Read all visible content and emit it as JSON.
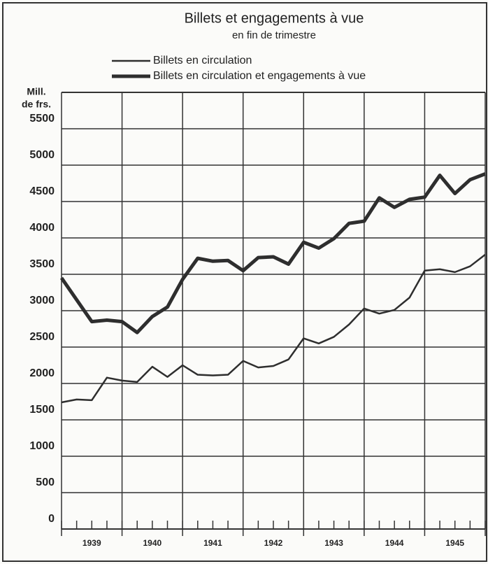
{
  "chart_data": {
    "type": "line",
    "title": "Billets et engagements à vue",
    "subtitle": "en fin de trimestre",
    "y_label": [
      "Mill.",
      "de frs."
    ],
    "x": [
      1939,
      1939.25,
      1939.5,
      1939.75,
      1940,
      1940.25,
      1940.5,
      1940.75,
      1941,
      1941.25,
      1941.5,
      1941.75,
      1942,
      1942.25,
      1942.5,
      1942.75,
      1943,
      1943.25,
      1943.5,
      1943.75,
      1944,
      1944.25,
      1944.5,
      1944.75,
      1945,
      1945.25,
      1945.5,
      1945.75,
      1946
    ],
    "series": [
      {
        "name": "Billets en circulation",
        "color": "#2e2e2e",
        "width": 2.5,
        "values": [
          1740,
          1780,
          1770,
          2080,
          2040,
          2020,
          2230,
          2090,
          2250,
          2120,
          2110,
          2120,
          2310,
          2220,
          2240,
          2330,
          2620,
          2550,
          2640,
          2810,
          3030,
          2960,
          3010,
          3180,
          3550,
          3570,
          3530,
          3610,
          3770
        ]
      },
      {
        "name": "Billets en circulation et engagements à vue",
        "color": "#2e2e2e",
        "width": 5,
        "values": [
          3450,
          3150,
          2850,
          2870,
          2850,
          2700,
          2920,
          3050,
          3430,
          3720,
          3680,
          3690,
          3550,
          3730,
          3740,
          3640,
          3940,
          3860,
          3990,
          4200,
          4230,
          4550,
          4420,
          4530,
          4560,
          4860,
          4610,
          4800,
          4880
        ]
      }
    ],
    "xlim": [
      1939,
      1946
    ],
    "xgrid": [
      1939,
      1940,
      1941,
      1942,
      1943,
      1944,
      1945,
      1946
    ],
    "xticks": [
      {
        "value": 1939.5,
        "label": "1939"
      },
      {
        "value": 1940.5,
        "label": "1940"
      },
      {
        "value": 1941.5,
        "label": "1941"
      },
      {
        "value": 1942.5,
        "label": "1942"
      },
      {
        "value": 1943.5,
        "label": "1943"
      },
      {
        "value": 1944.5,
        "label": "1944"
      },
      {
        "value": 1945.5,
        "label": "1945"
      }
    ],
    "ylim": [
      0,
      6000
    ],
    "yticks": [
      0,
      500,
      1000,
      1500,
      2000,
      2500,
      3000,
      3500,
      4000,
      4500,
      5000,
      5500
    ],
    "grid": true
  }
}
